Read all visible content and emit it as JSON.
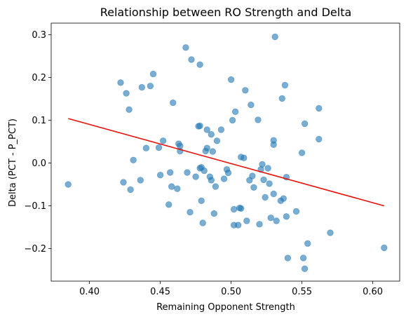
{
  "chart_data": {
    "type": "scatter",
    "title": "Relationship between RO Strength and Delta",
    "xlabel": "Remaining Opponent Strength",
    "ylabel": "Delta (PCT - P_PCT)",
    "xlim": [
      0.373,
      0.619
    ],
    "ylim": [
      -0.276,
      0.327
    ],
    "xticks": [
      0.4,
      0.45,
      0.5,
      0.55,
      0.6
    ],
    "xtick_labels": [
      "0.40",
      "0.45",
      "0.50",
      "0.55",
      "0.60"
    ],
    "yticks": [
      -0.2,
      -0.1,
      0.0,
      0.1,
      0.2,
      0.3
    ],
    "ytick_labels": [
      "−0.2",
      "−0.1",
      "0.0",
      "0.1",
      "0.2",
      "0.3"
    ],
    "grid": false,
    "colors": {
      "points": "#1f77b4",
      "trend": "#e8100a"
    },
    "point_alpha": 0.6,
    "series": [
      {
        "kind": "scatter",
        "points": [
          [
            0.385,
            -0.05
          ],
          [
            0.422,
            0.188
          ],
          [
            0.424,
            -0.045
          ],
          [
            0.426,
            0.163
          ],
          [
            0.428,
            0.125
          ],
          [
            0.429,
            -0.062
          ],
          [
            0.431,
            0.007
          ],
          [
            0.436,
            -0.04
          ],
          [
            0.437,
            0.177
          ],
          [
            0.44,
            0.035
          ],
          [
            0.443,
            0.18
          ],
          [
            0.445,
            0.208
          ],
          [
            0.449,
            0.036
          ],
          [
            0.45,
            -0.028
          ],
          [
            0.452,
            0.052
          ],
          [
            0.456,
            -0.097
          ],
          [
            0.457,
            -0.022
          ],
          [
            0.458,
            -0.055
          ],
          [
            0.459,
            0.141
          ],
          [
            0.462,
            -0.06
          ],
          [
            0.463,
            0.045
          ],
          [
            0.464,
            0.028
          ],
          [
            0.464,
            0.04
          ],
          [
            0.468,
            0.27
          ],
          [
            0.469,
            -0.022
          ],
          [
            0.471,
            -0.115
          ],
          [
            0.472,
            0.242
          ],
          [
            0.475,
            -0.032
          ],
          [
            0.477,
            0.086
          ],
          [
            0.478,
            0.087
          ],
          [
            0.478,
            0.23
          ],
          [
            0.478,
            -0.012
          ],
          [
            0.479,
            -0.01
          ],
          [
            0.479,
            -0.088
          ],
          [
            0.48,
            -0.14
          ],
          [
            0.481,
            -0.018
          ],
          [
            0.482,
            0.028
          ],
          [
            0.483,
            0.035
          ],
          [
            0.483,
            0.078
          ],
          [
            0.485,
            -0.032
          ],
          [
            0.486,
            0.067
          ],
          [
            0.486,
            -0.04
          ],
          [
            0.487,
            0.027
          ],
          [
            0.488,
            -0.118
          ],
          [
            0.489,
            -0.055
          ],
          [
            0.49,
            0.052
          ],
          [
            0.493,
            0.078
          ],
          [
            0.495,
            -0.037
          ],
          [
            0.497,
            -0.015
          ],
          [
            0.498,
            -0.023
          ],
          [
            0.5,
            0.195
          ],
          [
            0.501,
            0.1
          ],
          [
            0.502,
            -0.108
          ],
          [
            0.502,
            -0.145
          ],
          [
            0.503,
            0.12
          ],
          [
            0.505,
            -0.145
          ],
          [
            0.506,
            -0.105
          ],
          [
            0.507,
            -0.106
          ],
          [
            0.507,
            0.014
          ],
          [
            0.509,
            0.012
          ],
          [
            0.51,
            0.17
          ],
          [
            0.511,
            -0.135
          ],
          [
            0.513,
            -0.04
          ],
          [
            0.514,
            0.136
          ],
          [
            0.515,
            -0.03
          ],
          [
            0.516,
            -0.057
          ],
          [
            0.519,
            0.101
          ],
          [
            0.52,
            -0.143
          ],
          [
            0.521,
            -0.015
          ],
          [
            0.522,
            -0.003
          ],
          [
            0.523,
            -0.039
          ],
          [
            0.524,
            -0.08
          ],
          [
            0.526,
            -0.012
          ],
          [
            0.527,
            -0.048
          ],
          [
            0.528,
            -0.128
          ],
          [
            0.53,
            -0.072
          ],
          [
            0.53,
            0.053
          ],
          [
            0.53,
            0.043
          ],
          [
            0.531,
            0.295
          ],
          [
            0.532,
            -0.135
          ],
          [
            0.535,
            -0.088
          ],
          [
            0.536,
            0.151
          ],
          [
            0.537,
            -0.083
          ],
          [
            0.538,
            0.182
          ],
          [
            0.539,
            -0.033
          ],
          [
            0.539,
            -0.125
          ],
          [
            0.54,
            -0.222
          ],
          [
            0.546,
            -0.113
          ],
          [
            0.55,
            0.024
          ],
          [
            0.551,
            -0.222
          ],
          [
            0.552,
            0.092
          ],
          [
            0.552,
            -0.247
          ],
          [
            0.554,
            -0.188
          ],
          [
            0.562,
            0.128
          ],
          [
            0.562,
            0.056
          ],
          [
            0.57,
            -0.163
          ],
          [
            0.608,
            -0.198
          ]
        ]
      },
      {
        "kind": "line",
        "points": [
          [
            0.385,
            0.104
          ],
          [
            0.608,
            -0.1
          ]
        ]
      }
    ]
  }
}
